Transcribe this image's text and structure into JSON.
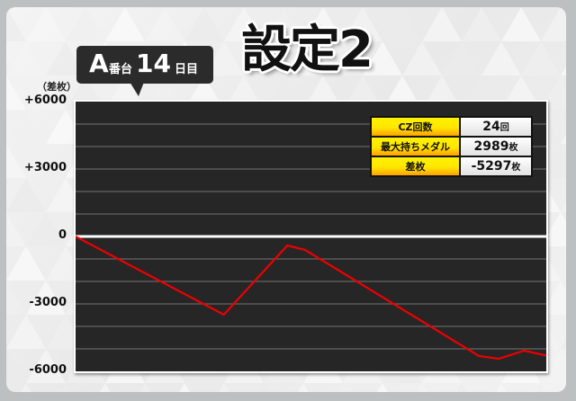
{
  "header": {
    "machine_letter": "A",
    "machine_suffix": "番台",
    "day_number": "14",
    "day_suffix": "日目",
    "setting_label": "設定2"
  },
  "stats": [
    {
      "label": "CZ回数",
      "value": "24",
      "unit": "回"
    },
    {
      "label": "最大持ちメダル",
      "value": "2989",
      "unit": "枚"
    },
    {
      "label": "差枚",
      "value": "-5297",
      "unit": "枚"
    }
  ],
  "colors": {
    "line": "#ee0000",
    "plot_bg": "#262626",
    "label_bg": "#ffe600"
  },
  "chart_data": {
    "type": "line",
    "title": "",
    "ylabel": "（差枚）",
    "xlabel": "",
    "ylim": [
      -6000,
      6000
    ],
    "yticks": [
      "+6000",
      "+3000",
      "0",
      "-3000",
      "-6000"
    ],
    "ytick_values": [
      6000,
      3000,
      0,
      -3000,
      -6000
    ],
    "grid": true,
    "grid_step": 1000,
    "series": [
      {
        "x": [
          0,
          0.315,
          0.45,
          0.488,
          0.857,
          0.899,
          0.953,
          1.0
        ],
        "values": [
          0,
          -3480,
          -400,
          -600,
          -5320,
          -5440,
          -5080,
          -5297
        ]
      }
    ]
  }
}
